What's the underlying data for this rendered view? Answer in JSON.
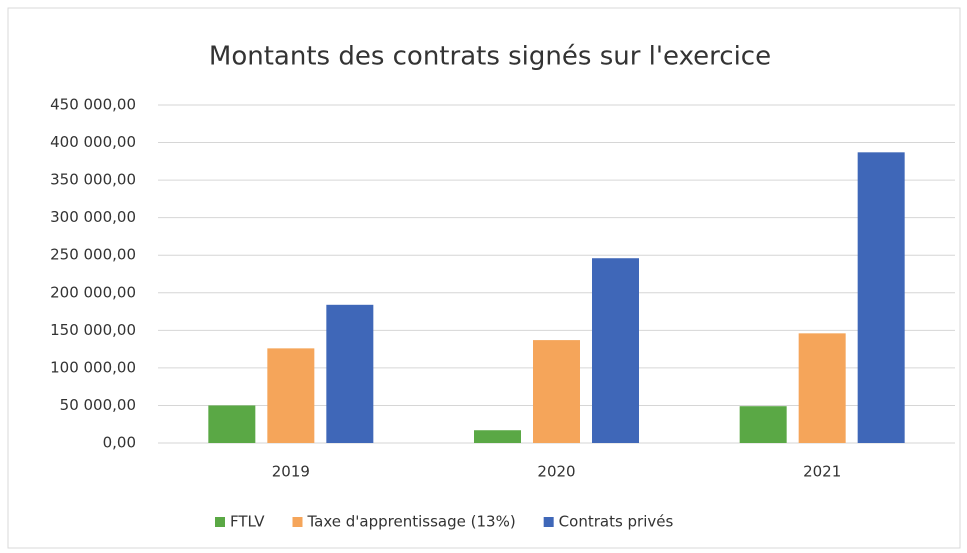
{
  "chart_data": {
    "type": "bar",
    "title": "Montants des contrats signés sur l'exercice",
    "categories": [
      "2019",
      "2020",
      "2021"
    ],
    "series": [
      {
        "name": "FTLV",
        "color": "#5aa845",
        "values": [
          50000,
          17000,
          49000
        ]
      },
      {
        "name": "Taxe d'apprentissage (13%)",
        "color": "#f5a55a",
        "values": [
          126000,
          137000,
          146000
        ]
      },
      {
        "name": "Contrats privés",
        "color": "#3f67b8",
        "values": [
          184000,
          246000,
          387000
        ]
      }
    ],
    "ylim": [
      0,
      450000
    ],
    "yticks": [
      {
        "value": 0,
        "label": "0,00"
      },
      {
        "value": 50000,
        "label": "50 000,00"
      },
      {
        "value": 100000,
        "label": "100 000,00"
      },
      {
        "value": 150000,
        "label": "150 000,00"
      },
      {
        "value": 200000,
        "label": "200 000,00"
      },
      {
        "value": 250000,
        "label": "250 000,00"
      },
      {
        "value": 300000,
        "label": "300 000,00"
      },
      {
        "value": 350000,
        "label": "350 000,00"
      },
      {
        "value": 400000,
        "label": "400 000,00"
      },
      {
        "value": 450000,
        "label": "450 000,00"
      }
    ],
    "grid": true,
    "legend": "bottom"
  }
}
